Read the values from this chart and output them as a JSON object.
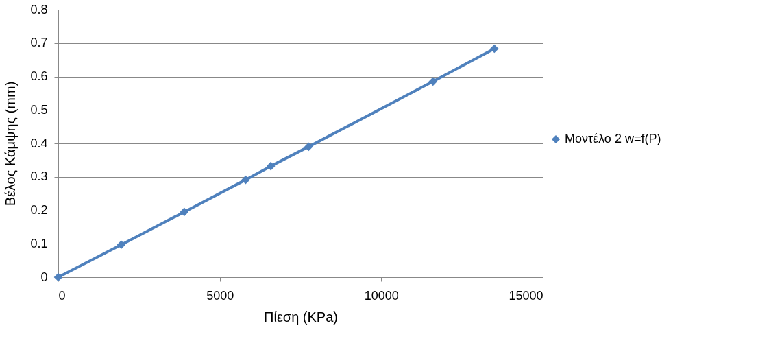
{
  "chart_data": {
    "type": "line",
    "xlabel": "Πίεση (KPa)",
    "ylabel": "Βέλος Κάμψης (mm)",
    "x": [
      0,
      1950,
      3900,
      5800,
      6580,
      7750,
      11600,
      13500
    ],
    "series": [
      {
        "name": "Μοντέλο 2 w=f(P)",
        "color": "#4f81bd",
        "values": [
          0,
          0.097,
          0.195,
          0.291,
          0.332,
          0.39,
          0.585,
          0.683
        ]
      }
    ],
    "xlim": [
      0,
      15000
    ],
    "xticks": [
      0,
      5000,
      10000,
      15000
    ],
    "ylim": [
      0,
      0.8
    ],
    "yticks": [
      0,
      0.1,
      0.2,
      0.3,
      0.4,
      0.5,
      0.6,
      0.7,
      0.8
    ],
    "grid": "y",
    "legend": "right",
    "marker": "diamond",
    "line_style": "solid"
  }
}
